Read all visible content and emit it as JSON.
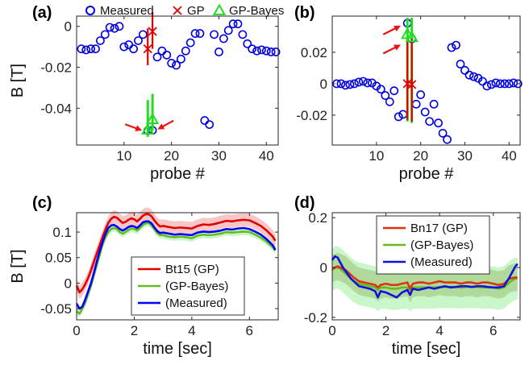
{
  "figure": {
    "top_legend": [
      {
        "label": "Measured",
        "marker": "circle",
        "color": "#0000e0"
      },
      {
        "label": "GP",
        "marker": "x",
        "color": "#e00000"
      },
      {
        "label": "GP-Bayes",
        "marker": "triangle",
        "color": "#22dd22"
      }
    ]
  },
  "chart_data": [
    {
      "panel": "(a)",
      "type": "scatter",
      "xlabel": "probe #",
      "ylabel": "B [T]",
      "xlim": [
        0,
        42.5
      ],
      "ylim": [
        -0.058,
        0.005
      ],
      "xticks": [
        10,
        20,
        30,
        40
      ],
      "yticks": [
        0,
        -0.02,
        -0.04
      ],
      "ytick_labels": [
        "0",
        "-0.02",
        "-0.04"
      ],
      "measured": {
        "x": [
          1,
          2,
          3,
          4,
          5,
          6,
          7,
          8,
          9,
          10,
          11,
          12,
          13,
          14,
          15,
          16,
          17,
          18,
          19,
          20,
          21,
          22,
          23,
          24,
          25,
          26,
          27,
          28,
          29,
          30,
          31,
          32,
          33,
          34,
          35,
          36,
          37,
          38,
          39,
          40,
          41,
          42
        ],
        "y": [
          -0.011,
          -0.0115,
          -0.011,
          -0.011,
          -0.007,
          -0.004,
          -0.0005,
          -0.001,
          0.0,
          -0.01,
          -0.009,
          -0.011,
          -0.007,
          -0.004,
          -0.051,
          -0.0508,
          -0.015,
          -0.012,
          -0.014,
          -0.018,
          -0.019,
          -0.016,
          -0.012,
          -0.008,
          -0.0035,
          -0.0035,
          -0.046,
          -0.048,
          -0.004,
          -0.0125,
          -0.006,
          -0.002,
          0.0012,
          0.0012,
          -0.004,
          -0.0085,
          -0.011,
          -0.012,
          -0.0115,
          -0.012,
          -0.0125,
          -0.0125
        ]
      },
      "gp": {
        "x": [
          15,
          16
        ],
        "y": [
          -0.011,
          -0.0025
        ],
        "err_low": [
          -0.019,
          -0.011
        ],
        "err_high": [
          -0.001,
          0.007
        ]
      },
      "gp_bayes": {
        "x": [
          15,
          16
        ],
        "y": [
          -0.0505,
          -0.0455
        ],
        "err_low": [
          -0.054,
          -0.051
        ],
        "err_high": [
          -0.036,
          -0.033
        ]
      },
      "annotations": [
        "arrow-left-of-probe-15",
        "arrow-right-of-probe-16"
      ]
    },
    {
      "panel": "(b)",
      "type": "scatter",
      "xlabel": "probe #",
      "ylabel": "",
      "xlim": [
        0,
        42.5
      ],
      "ylim": [
        -0.039,
        0.043
      ],
      "xticks": [
        10,
        20,
        30,
        40
      ],
      "yticks": [
        0.02,
        0,
        -0.02
      ],
      "ytick_labels": [
        "0.02",
        "0",
        "-0.02"
      ],
      "measured": {
        "x": [
          1,
          2,
          3,
          4,
          5,
          6,
          7,
          8,
          9,
          10,
          11,
          12,
          13,
          14,
          15,
          16,
          17,
          18,
          19,
          20,
          21,
          22,
          23,
          24,
          25,
          26,
          27,
          28,
          29,
          30,
          31,
          32,
          33,
          34,
          35,
          36,
          37,
          38,
          39,
          40,
          41,
          42
        ],
        "y": [
          0.0,
          0.0,
          -0.001,
          -0.0005,
          0.0,
          0.001,
          0.0015,
          0.0005,
          0.0005,
          -0.0015,
          -0.0035,
          -0.0075,
          -0.0115,
          -0.0045,
          -0.021,
          -0.0195,
          0.0385,
          0.0285,
          -0.013,
          -0.007,
          -0.018,
          -0.024,
          -0.013,
          -0.025,
          -0.0315,
          -0.0355,
          0.023,
          0.0245,
          0.0125,
          0.0085,
          0.0055,
          0.0045,
          0.0035,
          0.0015,
          -0.0015,
          -0.0005,
          0.0005,
          0.0,
          0.0,
          0.0,
          0.0005,
          0.0
        ]
      },
      "gp": {
        "x": [
          17,
          18
        ],
        "y": [
          0.0,
          -0.0005
        ],
        "err_low": [
          -0.023,
          -0.024
        ],
        "err_high": [
          0.028,
          0.029
        ]
      },
      "gp_bayes": {
        "x": [
          17,
          18
        ],
        "y": [
          0.0315,
          0.0295
        ],
        "err_low": [
          -0.024,
          -0.025
        ],
        "err_high": [
          0.042,
          0.042
        ]
      },
      "annotations": [
        "arrow-upper-left-probe-17",
        "arrow-lower-left-probe-17"
      ]
    },
    {
      "panel": "(c)",
      "type": "line",
      "xlabel": "time [sec]",
      "ylabel": "B [T]",
      "xlim": [
        0,
        7
      ],
      "ylim": [
        -0.072,
        0.138
      ],
      "xticks": [
        0,
        2,
        4,
        6
      ],
      "yticks": [
        0.1,
        0.05,
        0,
        -0.05
      ],
      "ytick_labels": [
        "0.1",
        "0.05",
        "0",
        "-0.05"
      ],
      "legend": [
        "Bt15 (GP)",
        "(GP-Bayes)",
        "(Measured)"
      ],
      "legend_position": "lower-center",
      "x": [
        0,
        0.1,
        0.2,
        0.3,
        0.4,
        0.5,
        0.6,
        0.7,
        0.8,
        0.9,
        1.0,
        1.1,
        1.2,
        1.3,
        1.4,
        1.5,
        1.6,
        1.7,
        1.8,
        1.9,
        2.0,
        2.1,
        2.2,
        2.3,
        2.4,
        2.5,
        2.6,
        2.7,
        2.8,
        2.9,
        3.0,
        3.2,
        3.4,
        3.6,
        3.8,
        4.0,
        4.2,
        4.4,
        4.6,
        4.8,
        5.0,
        5.2,
        5.4,
        5.6,
        5.8,
        6.0,
        6.2,
        6.4,
        6.6,
        6.8,
        6.9
      ],
      "series": [
        {
          "name": "Bt15 (GP)",
          "color": "#e00000",
          "band_color": "#f08080",
          "values": [
            -0.005,
            -0.018,
            -0.012,
            -0.002,
            0.01,
            0.025,
            0.042,
            0.058,
            0.074,
            0.09,
            0.105,
            0.118,
            0.126,
            0.13,
            0.128,
            0.123,
            0.118,
            0.12,
            0.124,
            0.127,
            0.125,
            0.121,
            0.126,
            0.132,
            0.135,
            0.135,
            0.131,
            0.123,
            0.116,
            0.111,
            0.112,
            0.11,
            0.108,
            0.109,
            0.108,
            0.107,
            0.112,
            0.115,
            0.114,
            0.116,
            0.119,
            0.122,
            0.121,
            0.123,
            0.124,
            0.123,
            0.118,
            0.112,
            0.103,
            0.092,
            0.083
          ],
          "band": 0.013
        },
        {
          "name": "(GP-Bayes)",
          "color": "#66bb22",
          "band_color": "#88ee88",
          "values": [
            -0.055,
            -0.06,
            -0.05,
            -0.038,
            -0.022,
            -0.005,
            0.015,
            0.035,
            0.055,
            0.075,
            0.09,
            0.1,
            0.106,
            0.108,
            0.106,
            0.1,
            0.097,
            0.1,
            0.104,
            0.107,
            0.106,
            0.103,
            0.108,
            0.114,
            0.117,
            0.118,
            0.113,
            0.106,
            0.098,
            0.094,
            0.094,
            0.091,
            0.09,
            0.091,
            0.09,
            0.088,
            0.093,
            0.095,
            0.094,
            0.095,
            0.097,
            0.1,
            0.099,
            0.1,
            0.101,
            0.1,
            0.095,
            0.089,
            0.081,
            0.071,
            0.064
          ],
          "band": 0.007
        },
        {
          "name": "(Measured)",
          "color": "#0000ff",
          "band_color": null,
          "values": [
            -0.04,
            -0.05,
            -0.046,
            -0.032,
            -0.016,
            0.0,
            0.02,
            0.042,
            0.062,
            0.08,
            0.096,
            0.108,
            0.113,
            0.114,
            0.111,
            0.106,
            0.103,
            0.106,
            0.11,
            0.112,
            0.111,
            0.108,
            0.113,
            0.119,
            0.121,
            0.121,
            0.117,
            0.109,
            0.102,
            0.098,
            0.099,
            0.097,
            0.095,
            0.096,
            0.095,
            0.094,
            0.099,
            0.101,
            0.1,
            0.101,
            0.103,
            0.106,
            0.105,
            0.107,
            0.108,
            0.106,
            0.101,
            0.095,
            0.086,
            0.075,
            0.065
          ],
          "band": null
        }
      ]
    },
    {
      "panel": "(d)",
      "type": "line",
      "xlabel": "time [sec]",
      "ylabel": "",
      "xlim": [
        0,
        7
      ],
      "ylim": [
        -0.21,
        0.22
      ],
      "xticks": [
        0,
        2,
        4,
        6
      ],
      "yticks": [
        0.2,
        0,
        -0.2
      ],
      "ytick_labels": [
        "0.2",
        "0",
        "-0.2"
      ],
      "legend": [
        "Bn17 (GP)",
        "(GP-Bayes)",
        "(Measured)"
      ],
      "legend_position": "top-center",
      "x": [
        0,
        0.1,
        0.2,
        0.3,
        0.4,
        0.5,
        0.6,
        0.7,
        0.8,
        0.9,
        1.0,
        1.2,
        1.4,
        1.6,
        1.7,
        1.8,
        2.0,
        2.2,
        2.4,
        2.6,
        2.8,
        2.9,
        3.0,
        3.2,
        3.4,
        3.6,
        3.8,
        4.0,
        4.2,
        4.4,
        4.6,
        4.8,
        5.0,
        5.2,
        5.4,
        5.6,
        5.8,
        6.0,
        6.2,
        6.4,
        6.6,
        6.8,
        6.9
      ],
      "series": [
        {
          "name": "Bn17 (GP)",
          "color": "#dd3311",
          "band_color": "#998844",
          "values": [
            -0.005,
            0.0,
            0.005,
            0.0,
            -0.005,
            -0.01,
            -0.02,
            -0.03,
            -0.04,
            -0.048,
            -0.055,
            -0.06,
            -0.065,
            -0.07,
            -0.08,
            -0.07,
            -0.065,
            -0.07,
            -0.07,
            -0.065,
            -0.06,
            -0.085,
            -0.065,
            -0.06,
            -0.06,
            -0.065,
            -0.06,
            -0.055,
            -0.06,
            -0.06,
            -0.06,
            -0.065,
            -0.06,
            -0.06,
            -0.065,
            -0.06,
            -0.06,
            -0.065,
            -0.07,
            -0.065,
            -0.045,
            -0.04,
            -0.04
          ],
          "band": 0.055
        },
        {
          "name": "(GP-Bayes)",
          "color": "#66bb22",
          "band_color": "#88ee88",
          "values": [
            -0.01,
            0.0,
            0.0,
            -0.005,
            -0.015,
            -0.025,
            -0.035,
            -0.045,
            -0.055,
            -0.06,
            -0.065,
            -0.07,
            -0.075,
            -0.08,
            -0.09,
            -0.08,
            -0.08,
            -0.085,
            -0.085,
            -0.08,
            -0.08,
            -0.09,
            -0.08,
            -0.08,
            -0.08,
            -0.08,
            -0.08,
            -0.078,
            -0.078,
            -0.078,
            -0.078,
            -0.08,
            -0.078,
            -0.078,
            -0.078,
            -0.08,
            -0.08,
            -0.08,
            -0.085,
            -0.08,
            -0.06,
            -0.045,
            -0.045
          ],
          "band": 0.085
        },
        {
          "name": "(Measured)",
          "color": "#1111dd",
          "band_color": null,
          "values": [
            0.03,
            0.045,
            0.04,
            0.02,
            0.0,
            -0.015,
            -0.03,
            -0.045,
            -0.055,
            -0.065,
            -0.075,
            -0.08,
            -0.085,
            -0.095,
            -0.12,
            -0.095,
            -0.1,
            -0.11,
            -0.12,
            -0.1,
            -0.09,
            -0.11,
            -0.085,
            -0.09,
            -0.085,
            -0.08,
            -0.085,
            -0.08,
            -0.075,
            -0.08,
            -0.078,
            -0.075,
            -0.075,
            -0.078,
            -0.075,
            -0.075,
            -0.078,
            -0.08,
            -0.08,
            -0.075,
            -0.04,
            0.0,
            0.015
          ],
          "band": null
        }
      ]
    }
  ]
}
